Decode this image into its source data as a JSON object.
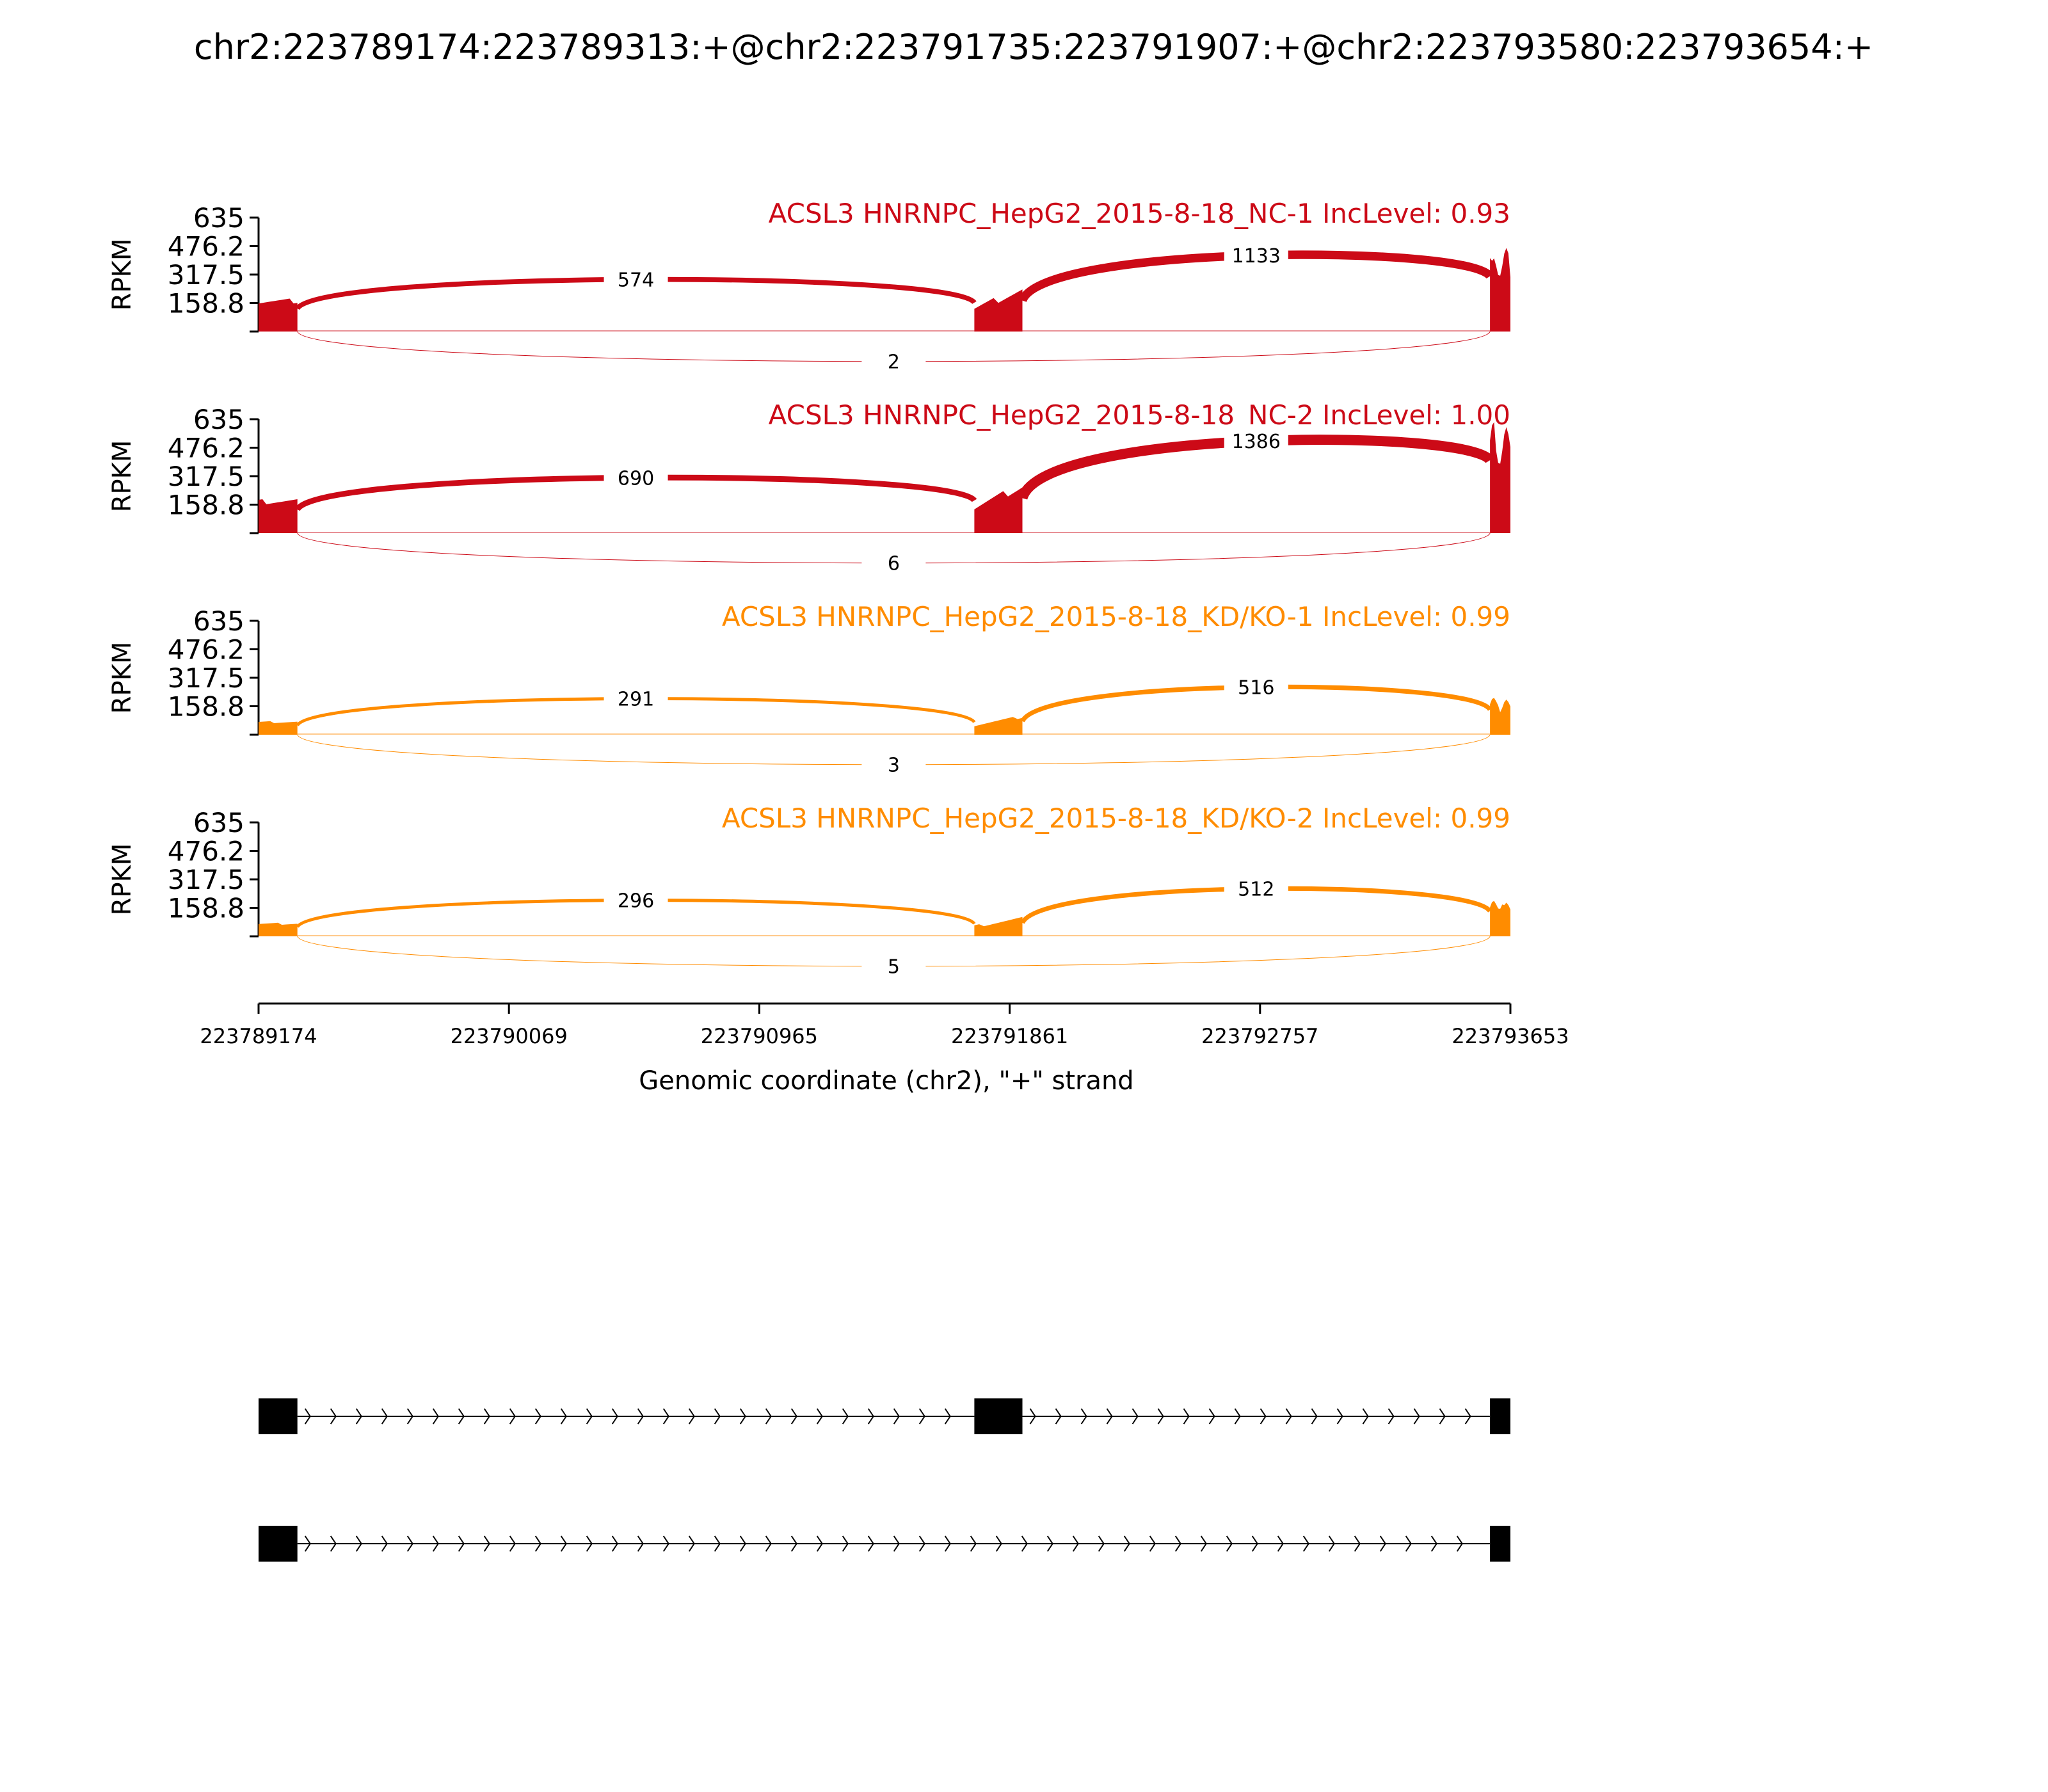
{
  "figure_title": "chr2:223789174:223789313:+@chr2:223791735:223791907:+@chr2:223793580:223793654:+",
  "colors": {
    "nc": "#cc0a17",
    "kd": "#ff8c00",
    "axis": "#000000"
  },
  "chart_data": {
    "type": "sashimi",
    "title": "chr2:223789174:223789313:+@chr2:223791735:223791907:+@chr2:223793580:223793654:+",
    "xlabel": "Genomic coordinate (chr2), \"+\" strand",
    "ylabel": "RPKM",
    "xlim": [
      223789174,
      223793653
    ],
    "ylim": [
      0,
      635
    ],
    "x_ticks": [
      "223789174",
      "223790069",
      "223790965",
      "223791861",
      "223792757",
      "223793653"
    ],
    "y_ticks": [
      "635",
      "476.2",
      "317.5",
      "158.8"
    ],
    "exons": [
      {
        "start": 223789174,
        "end": 223789313
      },
      {
        "start": 223791735,
        "end": 223791907
      },
      {
        "start": 223793580,
        "end": 223793654
      }
    ],
    "tracks": [
      {
        "label": "ACSL3 HNRNPC_HepG2_2015-8-18_NC-1 IncLevel: 0.93",
        "color": "#cc0a17",
        "coverage": {
          "exon1": 170,
          "exon2": 230,
          "exon3": 440
        },
        "junctions": [
          {
            "from": 223789313,
            "to": 223791735,
            "count": "574",
            "side": "above"
          },
          {
            "from": 223791907,
            "to": 223793580,
            "count": "1133",
            "side": "above"
          },
          {
            "from": 223789313,
            "to": 223793580,
            "count": "2",
            "side": "below"
          }
        ]
      },
      {
        "label": "ACSL3 HNRNPC_HepG2_2015-8-18_NC-2 IncLevel: 1.00",
        "color": "#cc0a17",
        "coverage": {
          "exon1": 175,
          "exon2": 260,
          "exon3": 580
        },
        "junctions": [
          {
            "from": 223789313,
            "to": 223791735,
            "count": "690",
            "side": "above"
          },
          {
            "from": 223791907,
            "to": 223793580,
            "count": "1386",
            "side": "above"
          },
          {
            "from": 223789313,
            "to": 223793580,
            "count": "6",
            "side": "below"
          }
        ]
      },
      {
        "label": "ACSL3 HNRNPC_HepG2_2015-8-18_KD/KO-1 IncLevel: 0.99",
        "color": "#ff8c00",
        "coverage": {
          "exon1": 70,
          "exon2": 100,
          "exon3": 200
        },
        "junctions": [
          {
            "from": 223789313,
            "to": 223791735,
            "count": "291",
            "side": "above"
          },
          {
            "from": 223791907,
            "to": 223793580,
            "count": "516",
            "side": "above"
          },
          {
            "from": 223789313,
            "to": 223793580,
            "count": "3",
            "side": "below"
          }
        ]
      },
      {
        "label": "ACSL3 HNRNPC_HepG2_2015-8-18_KD/KO-2 IncLevel: 0.99",
        "color": "#ff8c00",
        "coverage": {
          "exon1": 70,
          "exon2": 100,
          "exon3": 200
        },
        "junctions": [
          {
            "from": 223789313,
            "to": 223791735,
            "count": "296",
            "side": "above"
          },
          {
            "from": 223791907,
            "to": 223793580,
            "count": "512",
            "side": "above"
          },
          {
            "from": 223789313,
            "to": 223793580,
            "count": "5",
            "side": "below"
          }
        ]
      }
    ],
    "isoforms": [
      {
        "exons": [
          1,
          2,
          3
        ]
      },
      {
        "exons": [
          1,
          3
        ]
      }
    ]
  }
}
